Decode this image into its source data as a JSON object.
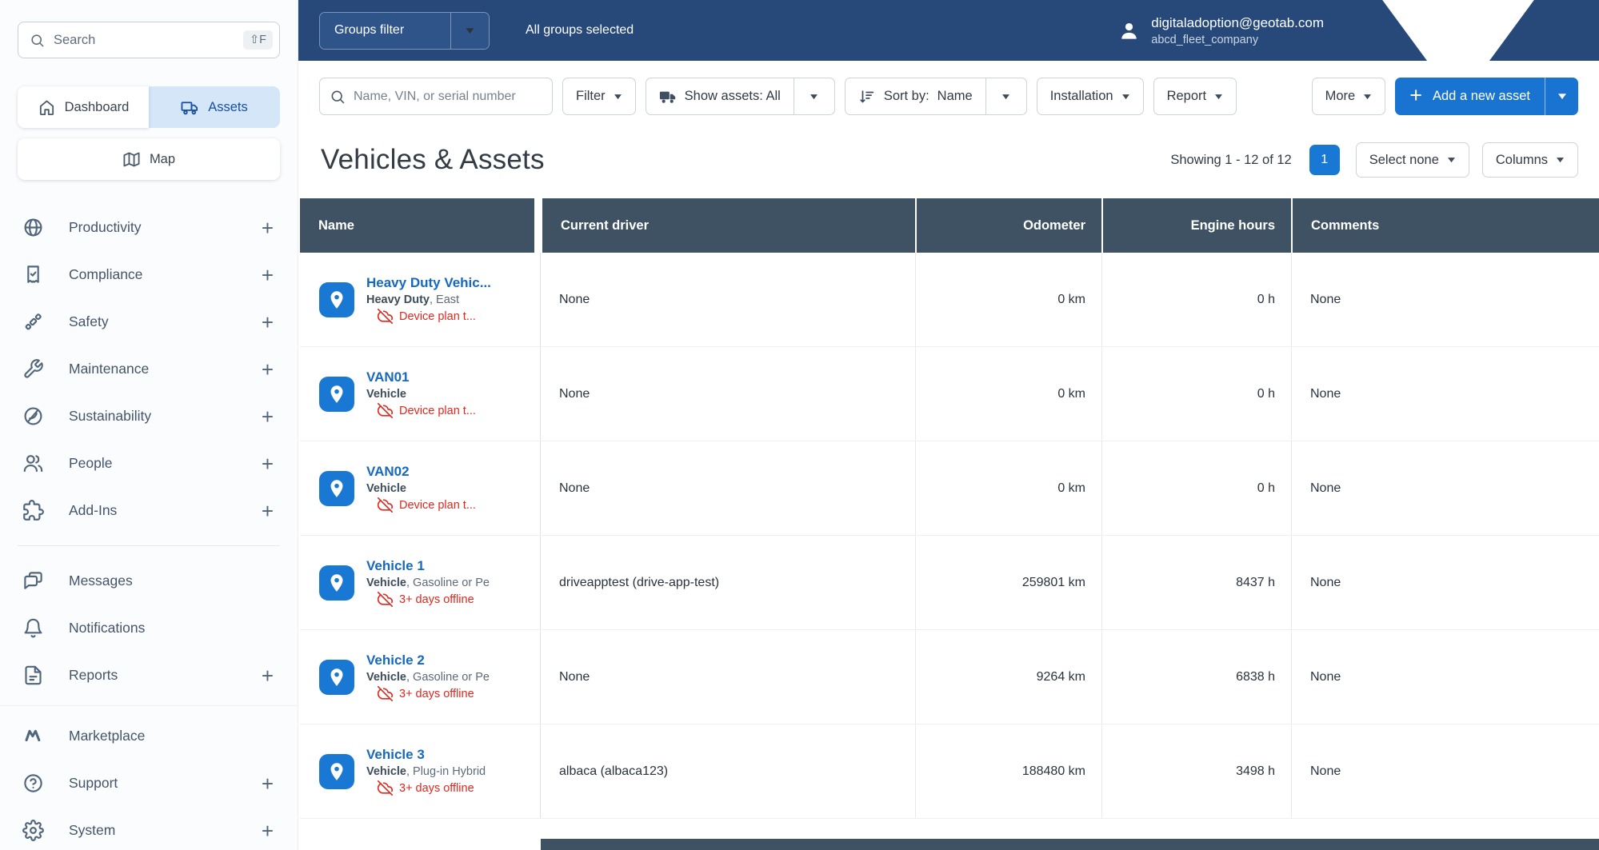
{
  "colors": {
    "topbar_navy": "#27497A",
    "accent_blue": "#1874D0",
    "pin_blue": "#1878D4",
    "link_blue": "#1569BE",
    "alert_red": "#E0281E",
    "table_header_slate": "#3E5264",
    "assets_active_bg": "#D5E6F9"
  },
  "sidebar": {
    "search": {
      "placeholder": "Search",
      "shortcut": "⇧F",
      "icon": "search-icon"
    },
    "views": {
      "dashboard": {
        "label": "Dashboard",
        "icon": "home-icon"
      },
      "assets": {
        "label": "Assets",
        "icon": "truck-icon"
      },
      "map": {
        "label": "Map",
        "icon": "map-icon"
      }
    },
    "nav_primary": [
      {
        "label": "Productivity",
        "icon": "globe-icon",
        "expandable": true
      },
      {
        "label": "Compliance",
        "icon": "certificate-icon",
        "expandable": true
      },
      {
        "label": "Safety",
        "icon": "seatbelt-icon",
        "expandable": true
      },
      {
        "label": "Maintenance",
        "icon": "wrench-icon",
        "expandable": true
      },
      {
        "label": "Sustainability",
        "icon": "leaf-icon",
        "expandable": true
      },
      {
        "label": "People",
        "icon": "people-icon",
        "expandable": true
      },
      {
        "label": "Add-Ins",
        "icon": "puzzle-icon",
        "expandable": true
      }
    ],
    "nav_secondary": [
      {
        "label": "Messages",
        "icon": "chat-icon",
        "expandable": false
      },
      {
        "label": "Notifications",
        "icon": "bell-icon",
        "expandable": false
      },
      {
        "label": "Reports",
        "icon": "document-icon",
        "expandable": true
      }
    ],
    "nav_tertiary": [
      {
        "label": "Marketplace",
        "icon": "marketplace-icon",
        "expandable": false
      },
      {
        "label": "Support",
        "icon": "question-icon",
        "expandable": true
      },
      {
        "label": "System",
        "icon": "gear-icon",
        "expandable": true
      }
    ]
  },
  "topbar": {
    "groups_filter_label": "Groups filter",
    "groups_status": "All groups selected",
    "user": {
      "email": "digitaladoption@geotab.com",
      "company": "abcd_fleet_company",
      "icon": "person-icon"
    }
  },
  "toolbar": {
    "search_placeholder": "Name, VIN, or serial number",
    "filter_label": "Filter",
    "show_assets_label": "Show assets: All",
    "sort_label": "Sort by:",
    "sort_value": "Name",
    "installation_label": "Installation",
    "report_label": "Report",
    "more_label": "More",
    "add_asset_label": "Add a new asset",
    "add_asset_plus": "+"
  },
  "page": {
    "title": "Vehicles & Assets",
    "showing_text": "Showing 1 - 12 of 12",
    "page_number": "1",
    "select_none_label": "Select none",
    "columns_label": "Columns"
  },
  "table": {
    "columns": [
      "Name",
      "Current driver",
      "Odometer",
      "Engine hours",
      "Comments"
    ],
    "rows": [
      {
        "name": "Heavy Duty Vehic...",
        "type_bold": "Heavy Duty",
        "type_rest": ", East",
        "status": "Device plan t...",
        "status_icon": "cloud-off-icon",
        "asset_icon": "location-pin-icon",
        "driver": "None",
        "odometer": "0 km",
        "engine_hours": "0 h",
        "comments": "None"
      },
      {
        "name": "VAN01",
        "type_bold": "Vehicle",
        "type_rest": "",
        "status": "Device plan t...",
        "status_icon": "cloud-off-icon",
        "asset_icon": "location-pin-icon",
        "driver": "None",
        "odometer": "0 km",
        "engine_hours": "0 h",
        "comments": "None"
      },
      {
        "name": "VAN02",
        "type_bold": "Vehicle",
        "type_rest": "",
        "status": "Device plan t...",
        "status_icon": "cloud-off-icon",
        "asset_icon": "location-pin-icon",
        "driver": "None",
        "odometer": "0 km",
        "engine_hours": "0 h",
        "comments": "None"
      },
      {
        "name": "Vehicle 1",
        "type_bold": "Vehicle",
        "type_rest": ", Gasoline or Pe",
        "status": "3+ days offline",
        "status_icon": "cloud-off-icon",
        "asset_icon": "location-pin-icon",
        "driver": "driveapptest (drive-app-test)",
        "odometer": "259801 km",
        "engine_hours": "8437 h",
        "comments": "None"
      },
      {
        "name": "Vehicle 2",
        "type_bold": "Vehicle",
        "type_rest": ", Gasoline or Pe",
        "status": "3+ days offline",
        "status_icon": "cloud-off-icon",
        "asset_icon": "location-pin-icon",
        "driver": "None",
        "odometer": "9264 km",
        "engine_hours": "6838 h",
        "comments": "None"
      },
      {
        "name": "Vehicle 3",
        "type_bold": "Vehicle",
        "type_rest": ", Plug-in Hybrid",
        "status": "3+ days offline",
        "status_icon": "cloud-off-icon",
        "asset_icon": "location-pin-icon",
        "driver": "albaca (albaca123)",
        "odometer": "188480 km",
        "engine_hours": "3498 h",
        "comments": "None"
      }
    ]
  }
}
